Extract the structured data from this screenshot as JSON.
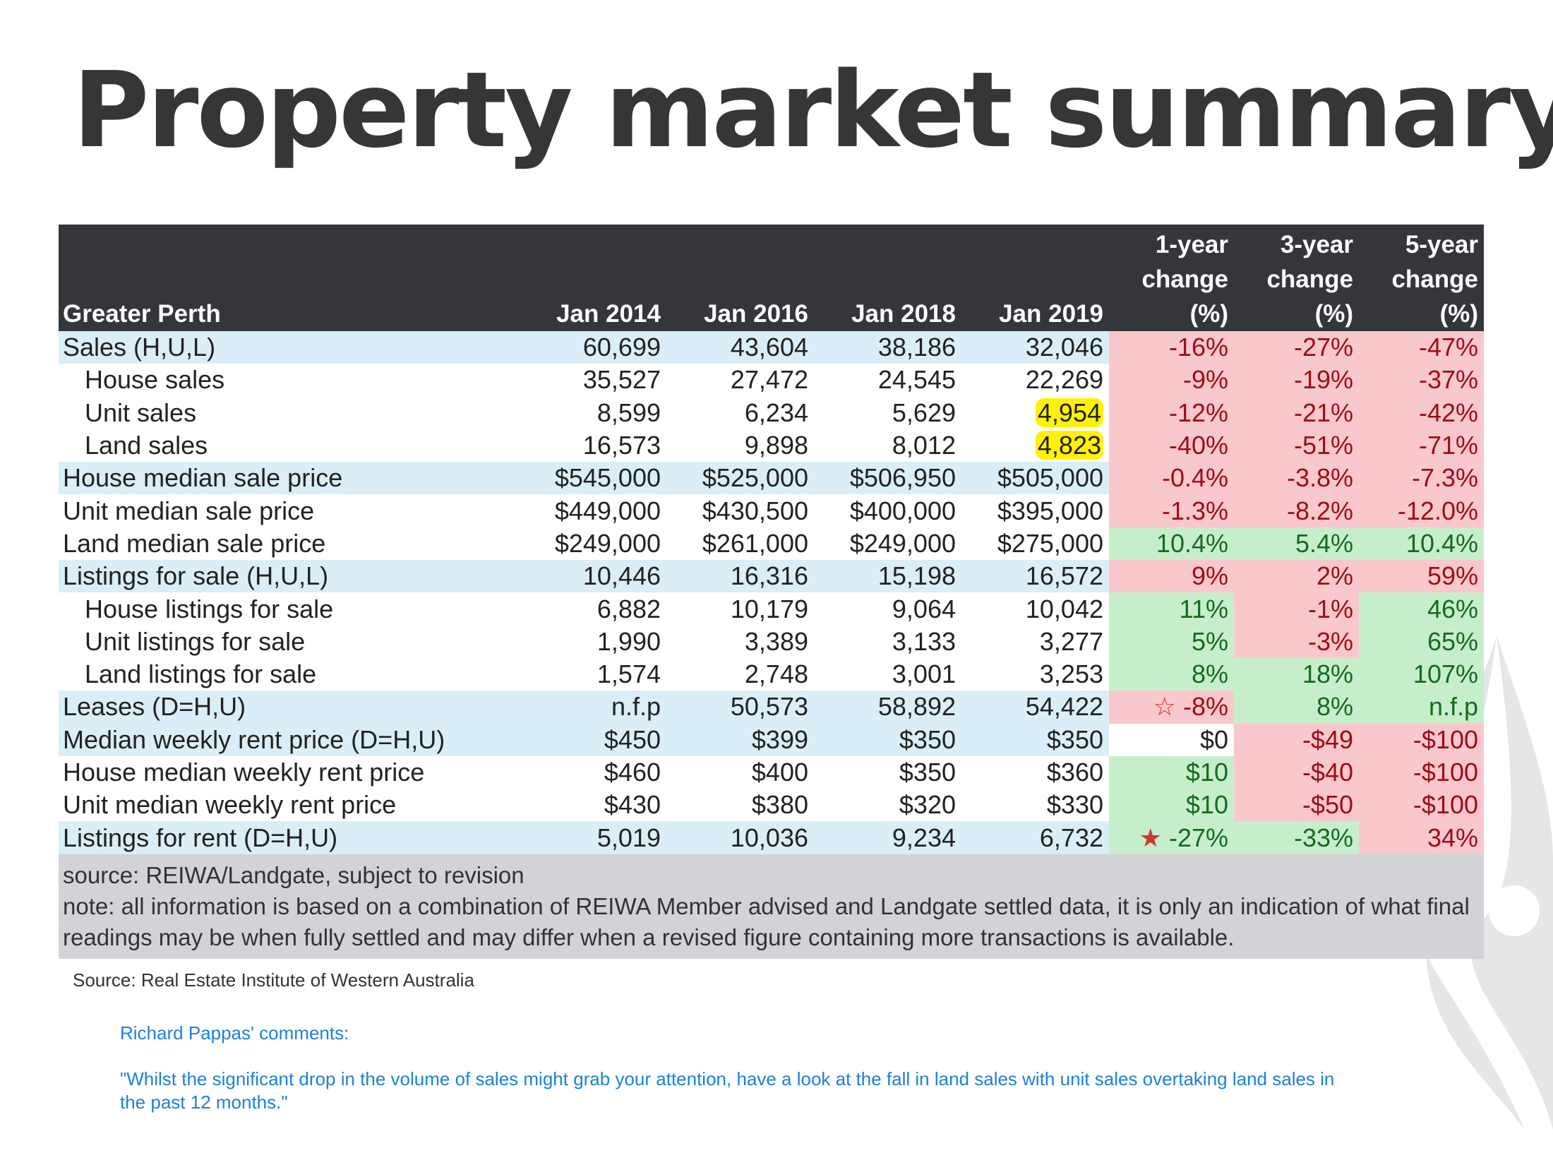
{
  "title": "Property market summary",
  "table": {
    "headers": [
      "Greater Perth",
      "Jan 2014",
      "Jan 2016",
      "Jan 2018",
      "Jan 2019",
      [
        "1-year",
        "change",
        "(%)"
      ],
      [
        "3-year",
        "change",
        "(%)"
      ],
      [
        "5-year",
        "change",
        "(%)"
      ]
    ],
    "rows": [
      {
        "label": "Sales (H,U,L)",
        "indent": false,
        "hl": true,
        "values": [
          "60,699",
          "43,604",
          "38,186",
          "32,046"
        ],
        "changes": [
          "-16%",
          "-27%",
          "-47%"
        ],
        "status": [
          "neg",
          "neg",
          "neg"
        ]
      },
      {
        "label": "House sales",
        "indent": true,
        "hl": false,
        "values": [
          "35,527",
          "27,472",
          "24,545",
          "22,269"
        ],
        "changes": [
          "-9%",
          "-19%",
          "-37%"
        ],
        "status": [
          "neg",
          "neg",
          "neg"
        ]
      },
      {
        "label": "Unit sales",
        "indent": true,
        "hl": false,
        "values": [
          "8,599",
          "6,234",
          "5,629",
          "4,954"
        ],
        "highlight_last": true,
        "changes": [
          "-12%",
          "-21%",
          "-42%"
        ],
        "status": [
          "neg",
          "neg",
          "neg"
        ]
      },
      {
        "label": "Land sales",
        "indent": true,
        "hl": false,
        "values": [
          "16,573",
          "9,898",
          "8,012",
          "4,823"
        ],
        "highlight_last": true,
        "changes": [
          "-40%",
          "-51%",
          "-71%"
        ],
        "status": [
          "neg",
          "neg",
          "neg"
        ]
      },
      {
        "label": "House median sale price",
        "indent": false,
        "hl": true,
        "values": [
          "$545,000",
          "$525,000",
          "$506,950",
          "$505,000"
        ],
        "changes": [
          "-0.4%",
          "-3.8%",
          "-7.3%"
        ],
        "status": [
          "neg",
          "neg",
          "neg"
        ]
      },
      {
        "label": "Unit median sale price",
        "indent": false,
        "hl": false,
        "values": [
          "$449,000",
          "$430,500",
          "$400,000",
          "$395,000"
        ],
        "changes": [
          "-1.3%",
          "-8.2%",
          "-12.0%"
        ],
        "status": [
          "neg",
          "neg",
          "neg"
        ]
      },
      {
        "label": "Land median sale price",
        "indent": false,
        "hl": false,
        "values": [
          "$249,000",
          "$261,000",
          "$249,000",
          "$275,000"
        ],
        "changes": [
          "10.4%",
          "5.4%",
          "10.4%"
        ],
        "status": [
          "pos",
          "pos",
          "pos"
        ]
      },
      {
        "label": "Listings for sale (H,U,L)",
        "indent": false,
        "hl": true,
        "values": [
          "10,446",
          "16,316",
          "15,198",
          "16,572"
        ],
        "changes": [
          "9%",
          "2%",
          "59%"
        ],
        "status": [
          "neg",
          "neg",
          "neg"
        ]
      },
      {
        "label": "House listings for sale",
        "indent": true,
        "hl": false,
        "values": [
          "6,882",
          "10,179",
          "9,064",
          "10,042"
        ],
        "changes": [
          "11%",
          "-1%",
          "46%"
        ],
        "status": [
          "pos",
          "neg",
          "pos"
        ]
      },
      {
        "label": "Unit listings for sale",
        "indent": true,
        "hl": false,
        "values": [
          "1,990",
          "3,389",
          "3,133",
          "3,277"
        ],
        "changes": [
          "5%",
          "-3%",
          "65%"
        ],
        "status": [
          "pos",
          "neg",
          "pos"
        ]
      },
      {
        "label": "Land listings for sale",
        "indent": true,
        "hl": false,
        "values": [
          "1,574",
          "2,748",
          "3,001",
          "3,253"
        ],
        "changes": [
          "8%",
          "18%",
          "107%"
        ],
        "status": [
          "pos",
          "pos",
          "pos"
        ]
      },
      {
        "label": "Leases (D=H,U)",
        "indent": false,
        "hl": true,
        "values": [
          "n.f.p",
          "50,573",
          "58,892",
          "54,422"
        ],
        "changes": [
          "-8%",
          "8%",
          "n.f.p"
        ],
        "status": [
          "neg",
          "pos",
          "pos"
        ],
        "star": "hollow-star-icon"
      },
      {
        "label": "Median weekly rent price (D=H,U)",
        "indent": false,
        "hl": true,
        "values": [
          "$450",
          "$399",
          "$350",
          "$350"
        ],
        "changes": [
          "$0",
          "-$49",
          "-$100"
        ],
        "status": [
          "neutral",
          "neg",
          "neg"
        ]
      },
      {
        "label": "House median weekly rent price",
        "indent": false,
        "hl": false,
        "values": [
          "$460",
          "$400",
          "$350",
          "$360"
        ],
        "changes": [
          "$10",
          "-$40",
          "-$100"
        ],
        "status": [
          "pos",
          "neg",
          "neg"
        ]
      },
      {
        "label": "Unit median weekly rent price",
        "indent": false,
        "hl": false,
        "values": [
          "$430",
          "$380",
          "$320",
          "$330"
        ],
        "changes": [
          "$10",
          "-$50",
          "-$100"
        ],
        "status": [
          "pos",
          "neg",
          "neg"
        ]
      },
      {
        "label": "Listings for rent (D=H,U)",
        "indent": false,
        "hl": true,
        "values": [
          "5,019",
          "10,036",
          "9,234",
          "6,732"
        ],
        "changes": [
          "-27%",
          "-33%",
          "34%"
        ],
        "status": [
          "pos",
          "pos",
          "neg"
        ],
        "star": "solid-star-icon"
      }
    ],
    "footer": {
      "source": "source: REIWA/Landgate, subject to revision",
      "note": "note: all information is based on a combination of REIWA Member advised and Landgate settled data, it is only an indication of what final readings may be when fully settled and may differ when a revised figure containing more transactions is available."
    }
  },
  "source_line": "Source: Real Estate Institute of Western Australia",
  "comments": {
    "heading": "Richard Pappas' comments:",
    "body": "\"Whilst the significant drop in the volume of sales might grab your attention, have a look at the fall in land sales with unit sales overtaking land sales in the past 12 months.\""
  },
  "colors": {
    "header_bg": "#34363b",
    "row_highlight": "#d9eef6",
    "positive_bg": "#c7eecb",
    "negative_bg": "#f9c8cd",
    "footer_bg": "#d2d3d7",
    "comment_text": "#1f80d8",
    "star": "#c63a33",
    "marker": "#fff200"
  },
  "icons": {
    "watermark": "brand-watermark-icon"
  }
}
